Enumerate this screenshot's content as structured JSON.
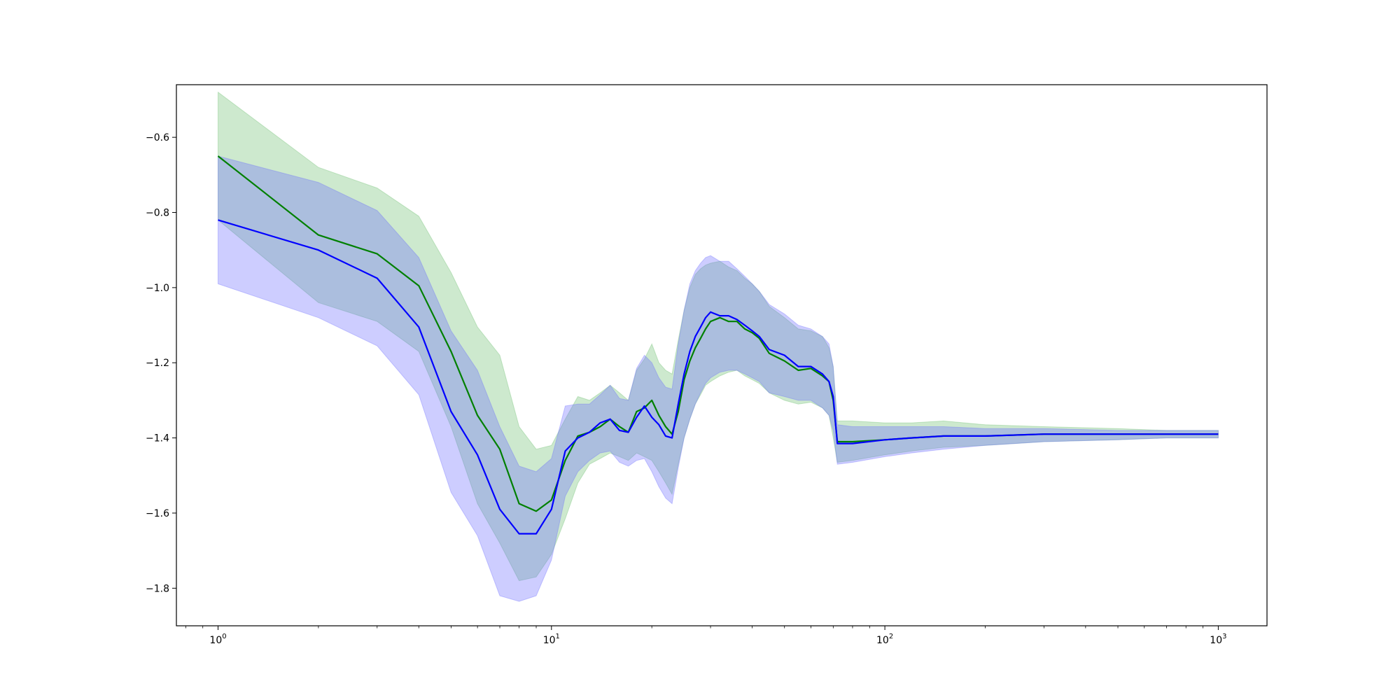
{
  "chart_data": {
    "type": "line",
    "title": "",
    "xlabel": "",
    "ylabel": "",
    "xscale": "log",
    "xlim": [
      0.75,
      1400
    ],
    "ylim": [
      -1.9,
      -0.46
    ],
    "grid": false,
    "legend": "none",
    "x_ticks": [
      {
        "value": 1,
        "base": "10",
        "exp": "0"
      },
      {
        "value": 10,
        "base": "10",
        "exp": "1"
      },
      {
        "value": 100,
        "base": "10",
        "exp": "2"
      },
      {
        "value": 1000,
        "base": "10",
        "exp": "3"
      }
    ],
    "y_ticks": [
      {
        "value": -0.6,
        "label": "−0.6"
      },
      {
        "value": -0.8,
        "label": "−0.8"
      },
      {
        "value": -1.0,
        "label": "−1.0"
      },
      {
        "value": -1.2,
        "label": "−1.2"
      },
      {
        "value": -1.4,
        "label": "−1.4"
      },
      {
        "value": -1.6,
        "label": "−1.6"
      },
      {
        "value": -1.8,
        "label": "−1.8"
      }
    ],
    "series": [
      {
        "color": "#008000",
        "band_color": "#4caf50",
        "band_opacity": 0.28,
        "x": [
          1,
          2,
          3,
          4,
          5,
          6,
          7,
          8,
          9,
          10,
          11,
          12,
          13,
          14,
          15,
          16,
          17,
          18,
          19,
          20,
          21,
          22,
          23,
          24,
          25,
          26,
          27,
          28,
          29,
          30,
          32,
          34,
          36,
          38,
          40,
          42,
          45,
          50,
          55,
          60,
          65,
          68,
          70,
          72,
          80,
          100,
          120,
          150,
          200,
          300,
          500,
          700,
          1000
        ],
        "y": [
          -0.65,
          -0.86,
          -0.91,
          -0.995,
          -1.17,
          -1.34,
          -1.43,
          -1.575,
          -1.595,
          -1.565,
          -1.46,
          -1.395,
          -1.385,
          -1.37,
          -1.35,
          -1.37,
          -1.385,
          -1.33,
          -1.32,
          -1.3,
          -1.34,
          -1.37,
          -1.39,
          -1.33,
          -1.245,
          -1.195,
          -1.16,
          -1.135,
          -1.11,
          -1.09,
          -1.08,
          -1.09,
          -1.09,
          -1.11,
          -1.12,
          -1.135,
          -1.175,
          -1.195,
          -1.22,
          -1.215,
          -1.235,
          -1.25,
          -1.3,
          -1.41,
          -1.41,
          -1.405,
          -1.4,
          -1.395,
          -1.395,
          -1.39,
          -1.39,
          -1.39,
          -1.39
        ],
        "upper": [
          -0.48,
          -0.68,
          -0.735,
          -0.81,
          -0.96,
          -1.105,
          -1.18,
          -1.37,
          -1.43,
          -1.42,
          -1.35,
          -1.29,
          -1.3,
          -1.28,
          -1.26,
          -1.28,
          -1.3,
          -1.22,
          -1.19,
          -1.15,
          -1.2,
          -1.22,
          -1.23,
          -1.14,
          -1.06,
          -1.0,
          -0.965,
          -0.95,
          -0.94,
          -0.935,
          -0.93,
          -0.945,
          -0.955,
          -0.975,
          -0.99,
          -1.01,
          -1.05,
          -1.08,
          -1.11,
          -1.115,
          -1.13,
          -1.16,
          -1.21,
          -1.355,
          -1.355,
          -1.36,
          -1.36,
          -1.355,
          -1.365,
          -1.37,
          -1.375,
          -1.38,
          -1.38
        ],
        "lower": [
          -0.82,
          -1.04,
          -1.09,
          -1.17,
          -1.37,
          -1.575,
          -1.68,
          -1.78,
          -1.77,
          -1.71,
          -1.615,
          -1.52,
          -1.47,
          -1.455,
          -1.44,
          -1.45,
          -1.46,
          -1.44,
          -1.45,
          -1.46,
          -1.49,
          -1.52,
          -1.55,
          -1.47,
          -1.4,
          -1.35,
          -1.31,
          -1.285,
          -1.26,
          -1.25,
          -1.235,
          -1.225,
          -1.22,
          -1.235,
          -1.245,
          -1.255,
          -1.28,
          -1.3,
          -1.31,
          -1.305,
          -1.32,
          -1.34,
          -1.4,
          -1.465,
          -1.46,
          -1.445,
          -1.435,
          -1.425,
          -1.42,
          -1.41,
          -1.405,
          -1.4,
          -1.4
        ]
      },
      {
        "color": "#0000ff",
        "band_color": "#6666ff",
        "band_opacity": 0.33,
        "x": [
          1,
          2,
          3,
          4,
          5,
          6,
          7,
          8,
          9,
          10,
          11,
          12,
          13,
          14,
          15,
          16,
          17,
          18,
          19,
          20,
          21,
          22,
          23,
          24,
          25,
          26,
          27,
          28,
          29,
          30,
          32,
          34,
          36,
          38,
          40,
          42,
          45,
          50,
          55,
          60,
          65,
          68,
          70,
          72,
          80,
          100,
          120,
          150,
          200,
          300,
          500,
          700,
          1000
        ],
        "y": [
          -0.82,
          -0.9,
          -0.975,
          -1.105,
          -1.33,
          -1.445,
          -1.59,
          -1.655,
          -1.655,
          -1.59,
          -1.435,
          -1.4,
          -1.385,
          -1.36,
          -1.35,
          -1.38,
          -1.385,
          -1.345,
          -1.315,
          -1.345,
          -1.365,
          -1.395,
          -1.4,
          -1.31,
          -1.23,
          -1.17,
          -1.13,
          -1.105,
          -1.08,
          -1.065,
          -1.075,
          -1.075,
          -1.085,
          -1.1,
          -1.115,
          -1.13,
          -1.165,
          -1.18,
          -1.21,
          -1.21,
          -1.23,
          -1.25,
          -1.29,
          -1.415,
          -1.415,
          -1.405,
          -1.4,
          -1.395,
          -1.395,
          -1.39,
          -1.39,
          -1.39,
          -1.39
        ],
        "upper": [
          -0.65,
          -0.72,
          -0.795,
          -0.92,
          -1.115,
          -1.22,
          -1.37,
          -1.475,
          -1.49,
          -1.455,
          -1.315,
          -1.31,
          -1.31,
          -1.285,
          -1.26,
          -1.295,
          -1.3,
          -1.215,
          -1.18,
          -1.2,
          -1.24,
          -1.265,
          -1.27,
          -1.15,
          -1.06,
          -0.99,
          -0.955,
          -0.935,
          -0.92,
          -0.915,
          -0.93,
          -0.93,
          -0.95,
          -0.97,
          -0.99,
          -1.01,
          -1.045,
          -1.07,
          -1.1,
          -1.11,
          -1.13,
          -1.15,
          -1.21,
          -1.365,
          -1.37,
          -1.37,
          -1.37,
          -1.37,
          -1.375,
          -1.375,
          -1.38,
          -1.38,
          -1.38
        ],
        "lower": [
          -0.99,
          -1.08,
          -1.155,
          -1.285,
          -1.545,
          -1.66,
          -1.82,
          -1.835,
          -1.82,
          -1.725,
          -1.555,
          -1.49,
          -1.46,
          -1.44,
          -1.435,
          -1.465,
          -1.475,
          -1.46,
          -1.455,
          -1.49,
          -1.53,
          -1.56,
          -1.575,
          -1.48,
          -1.4,
          -1.35,
          -1.31,
          -1.28,
          -1.255,
          -1.24,
          -1.225,
          -1.22,
          -1.22,
          -1.23,
          -1.24,
          -1.25,
          -1.28,
          -1.29,
          -1.3,
          -1.3,
          -1.32,
          -1.34,
          -1.38,
          -1.47,
          -1.465,
          -1.45,
          -1.44,
          -1.43,
          -1.42,
          -1.41,
          -1.405,
          -1.4,
          -1.4
        ]
      }
    ]
  }
}
